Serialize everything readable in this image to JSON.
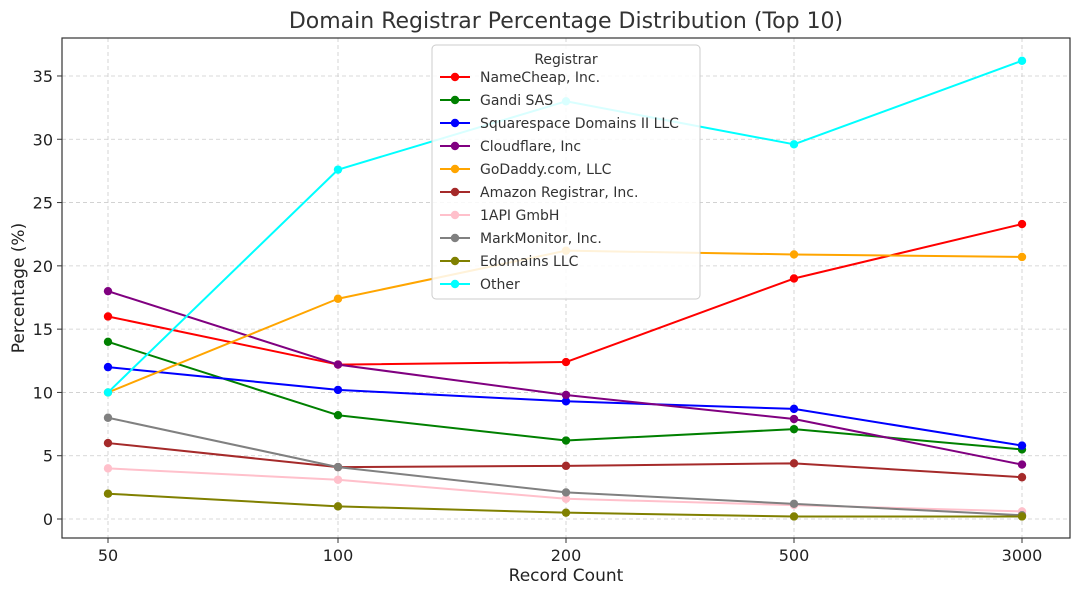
{
  "chart_data": {
    "type": "line",
    "title": "Domain Registrar Percentage Distribution (Top 10)",
    "xlabel": "Record Count",
    "ylabel": "Percentage (%)",
    "categories": [
      "50",
      "100",
      "200",
      "500",
      "3000"
    ],
    "ylim": [
      -1.5,
      38
    ],
    "yticks": [
      0,
      5,
      10,
      15,
      20,
      25,
      30,
      35
    ],
    "grid": true,
    "legend": {
      "title": "Registrar",
      "placement": "top-center"
    },
    "series": [
      {
        "name": "NameCheap, Inc.",
        "color": "#ff0000",
        "values": [
          16.0,
          12.2,
          12.4,
          19.0,
          23.3
        ]
      },
      {
        "name": "Gandi SAS",
        "color": "#008000",
        "values": [
          14.0,
          8.2,
          6.2,
          7.1,
          5.5
        ]
      },
      {
        "name": "Squarespace Domains II LLC",
        "color": "#0000ff",
        "values": [
          12.0,
          10.2,
          9.3,
          8.7,
          5.8
        ]
      },
      {
        "name": "Cloudflare, Inc",
        "color": "#800080",
        "values": [
          18.0,
          12.2,
          9.8,
          7.9,
          4.3
        ]
      },
      {
        "name": "GoDaddy.com, LLC",
        "color": "#ffa500",
        "values": [
          10.0,
          17.4,
          21.2,
          20.9,
          20.7
        ]
      },
      {
        "name": "Amazon Registrar, Inc.",
        "color": "#a52a2a",
        "values": [
          6.0,
          4.1,
          4.2,
          4.4,
          3.3
        ]
      },
      {
        "name": "1API GmbH",
        "color": "#ffc0cb",
        "values": [
          4.0,
          3.1,
          1.6,
          1.1,
          0.6
        ]
      },
      {
        "name": "MarkMonitor, Inc.",
        "color": "#808080",
        "values": [
          8.0,
          4.1,
          2.1,
          1.2,
          0.3
        ]
      },
      {
        "name": "Edomains LLC",
        "color": "#808000",
        "values": [
          2.0,
          1.0,
          0.5,
          0.2,
          0.2
        ]
      },
      {
        "name": "Other",
        "color": "#00ffff",
        "values": [
          10.0,
          27.6,
          33.0,
          29.6,
          36.2
        ]
      }
    ]
  }
}
